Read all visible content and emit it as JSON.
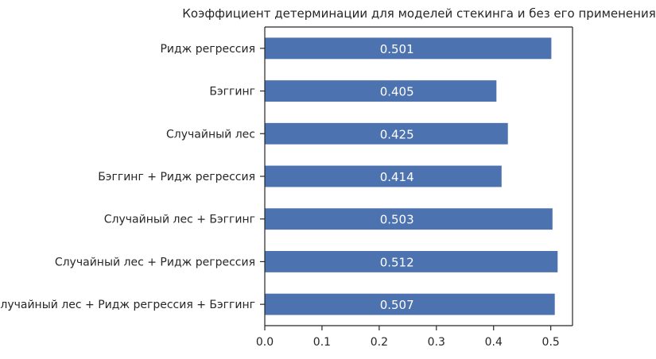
{
  "chart_data": {
    "type": "bar",
    "orientation": "horizontal",
    "title": "Коэффициент детерминации  для моделей стекинга и без его применения",
    "xlabel": "",
    "ylabel": "",
    "categories": [
      "Ридж регрессия",
      "Бэггинг",
      "Случайный лес",
      "Бэггинг + Ридж регрессия",
      "Случайный лес + Бэггинг",
      "Случайный лес + Ридж регрессия",
      "Случайный лес + Ридж регрессия + Бэггинг"
    ],
    "values": [
      0.501,
      0.405,
      0.425,
      0.414,
      0.503,
      0.512,
      0.507
    ],
    "value_labels": [
      "0.501",
      "0.405",
      "0.425",
      "0.414",
      "0.503",
      "0.512",
      "0.507"
    ],
    "xlim": [
      0,
      0.538
    ],
    "xticks": [
      0.0,
      0.1,
      0.2,
      0.3,
      0.4,
      0.5
    ],
    "xtick_labels": [
      "0.0",
      "0.1",
      "0.2",
      "0.3",
      "0.4",
      "0.5"
    ],
    "bar_color": "#4c72b0",
    "grid": false,
    "legend": "none"
  }
}
